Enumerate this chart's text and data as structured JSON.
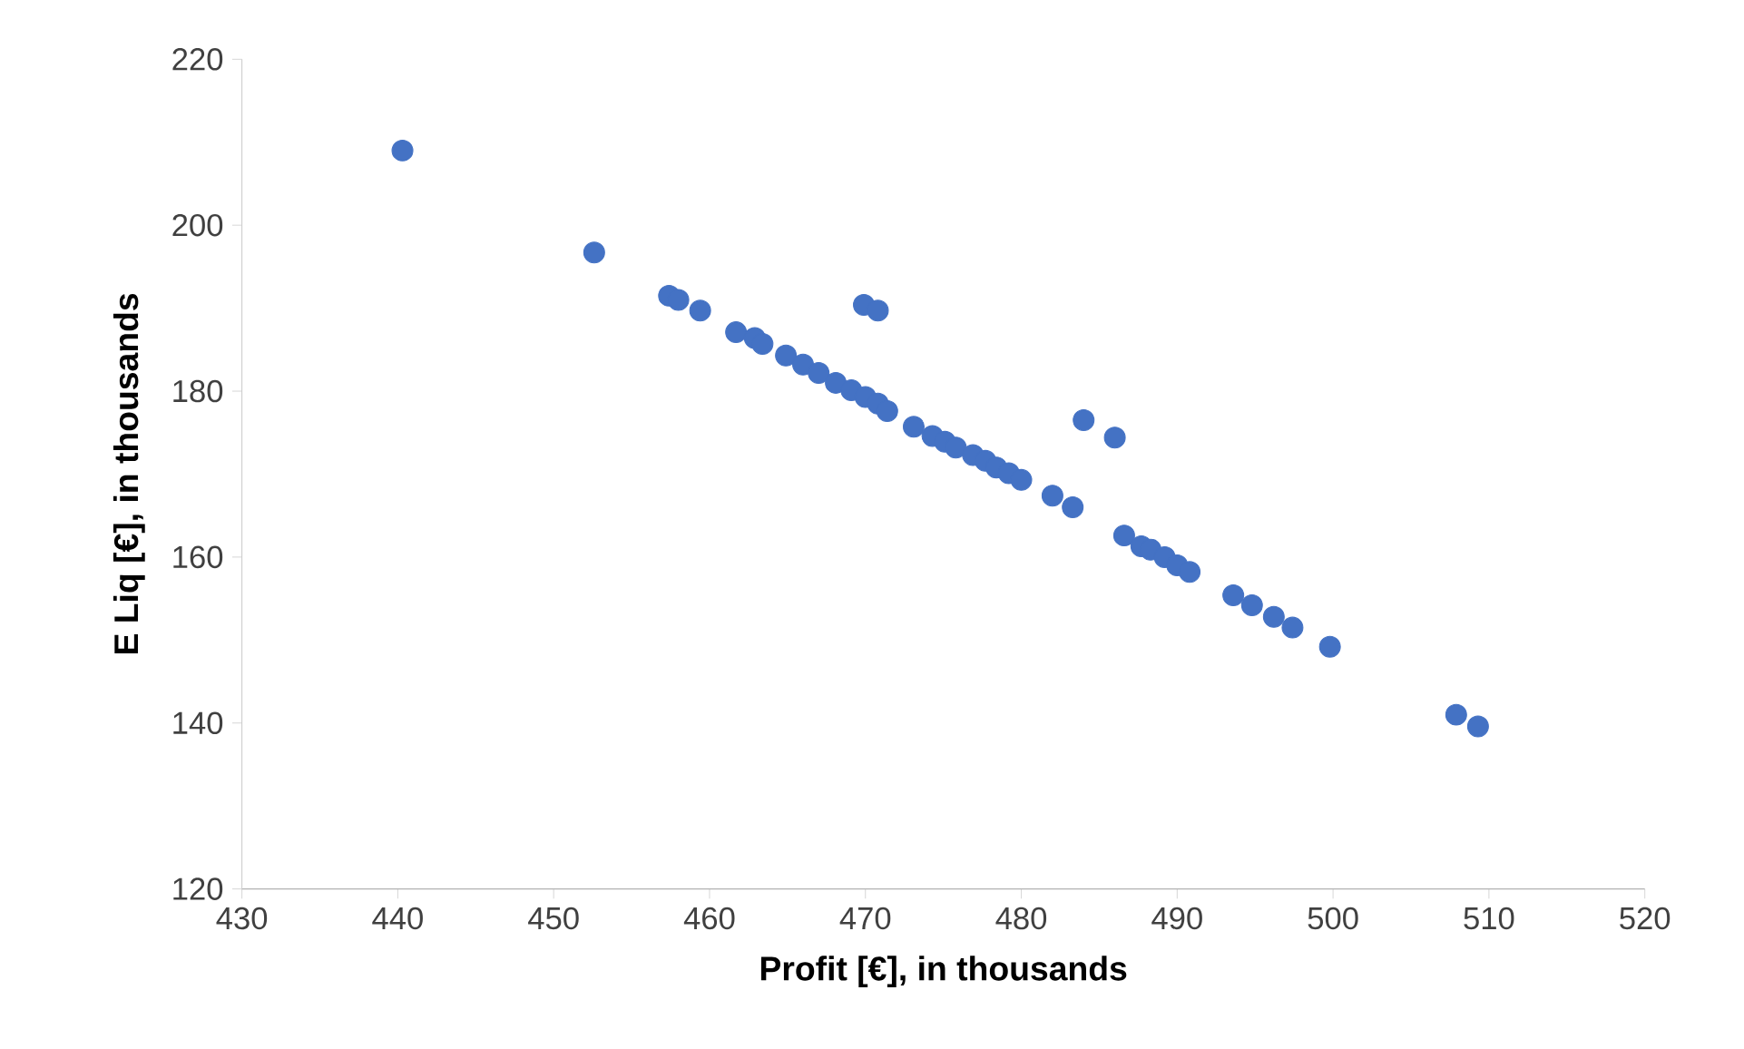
{
  "chart_data": {
    "type": "scatter",
    "xlabel": "Profit [€], in thousands",
    "ylabel": "E Liq [€], in thousands",
    "xlim": [
      430,
      520
    ],
    "xticks": [
      430,
      440,
      450,
      460,
      470,
      480,
      490,
      500,
      510,
      520
    ],
    "ylim": [
      120,
      220
    ],
    "yticks": [
      120,
      140,
      160,
      180,
      200,
      220
    ],
    "grid": false,
    "series": [
      {
        "color": "#4472c4",
        "x": [
          440.3,
          452.6,
          457.4,
          458.0,
          459.4,
          461.7,
          462.9,
          463.4,
          464.9,
          466.0,
          467.0,
          468.1,
          469.1,
          470.0,
          470.8,
          471.4,
          473.1,
          474.3,
          475.1,
          475.8,
          476.9,
          477.7,
          478.4,
          479.2,
          480.0,
          482.0,
          483.3,
          469.9,
          470.8,
          484.0,
          486.0,
          486.6,
          487.7,
          488.3,
          489.2,
          490.0,
          490.8,
          493.6,
          494.8,
          496.2,
          497.4,
          499.8,
          507.9,
          509.3
        ],
        "values": [
          209.0,
          196.7,
          191.5,
          191.0,
          189.7,
          187.1,
          186.4,
          185.7,
          184.3,
          183.2,
          182.2,
          181.0,
          180.1,
          179.3,
          178.5,
          177.6,
          175.7,
          174.6,
          173.9,
          173.2,
          172.3,
          171.6,
          170.8,
          170.1,
          169.3,
          167.4,
          166.0,
          190.4,
          189.7,
          176.5,
          174.4,
          162.6,
          161.3,
          160.9,
          160.0,
          159.0,
          158.2,
          155.4,
          154.2,
          152.8,
          151.5,
          149.2,
          141.0,
          139.6
        ]
      }
    ]
  }
}
